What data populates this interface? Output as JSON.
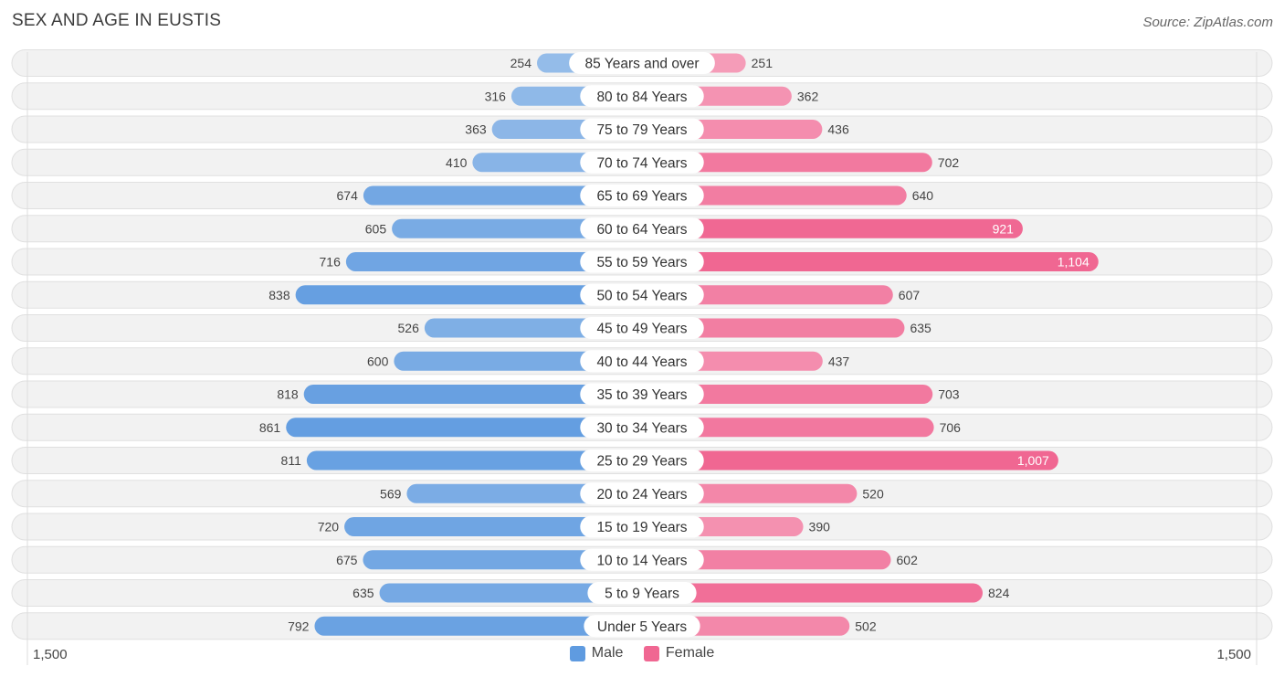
{
  "title": "SEX AND AGE IN EUSTIS",
  "source": "Source: ZipAtlas.com",
  "colors": {
    "male_light": "#a8c8ec",
    "male_dark": "#5f9be0",
    "female_light": "#f7afc6",
    "female_dark": "#f06792"
  },
  "legend": {
    "male": "Male",
    "female": "Female"
  },
  "axis": {
    "left_label": "1,500",
    "right_label": "1,500"
  },
  "chart_data": {
    "type": "bar",
    "orientation": "horizontal-diverging",
    "title": "SEX AND AGE IN EUSTIS",
    "xlim": [
      -1500,
      1500
    ],
    "categories": [
      "85 Years and over",
      "80 to 84 Years",
      "75 to 79 Years",
      "70 to 74 Years",
      "65 to 69 Years",
      "60 to 64 Years",
      "55 to 59 Years",
      "50 to 54 Years",
      "45 to 49 Years",
      "40 to 44 Years",
      "35 to 39 Years",
      "30 to 34 Years",
      "25 to 29 Years",
      "20 to 24 Years",
      "15 to 19 Years",
      "10 to 14 Years",
      "5 to 9 Years",
      "Under 5 Years"
    ],
    "series": [
      {
        "name": "Male",
        "values": [
          254,
          316,
          363,
          410,
          674,
          605,
          716,
          838,
          526,
          600,
          818,
          861,
          811,
          569,
          720,
          675,
          635,
          792
        ],
        "labels": [
          "254",
          "316",
          "363",
          "410",
          "674",
          "605",
          "716",
          "838",
          "526",
          "600",
          "818",
          "861",
          "811",
          "569",
          "720",
          "675",
          "635",
          "792"
        ]
      },
      {
        "name": "Female",
        "values": [
          251,
          362,
          436,
          702,
          640,
          921,
          1104,
          607,
          635,
          437,
          703,
          706,
          1007,
          520,
          390,
          602,
          824,
          502
        ],
        "labels": [
          "251",
          "362",
          "436",
          "702",
          "640",
          "921",
          "1,104",
          "607",
          "635",
          "437",
          "703",
          "706",
          "1,007",
          "520",
          "390",
          "602",
          "824",
          "502"
        ]
      }
    ]
  }
}
